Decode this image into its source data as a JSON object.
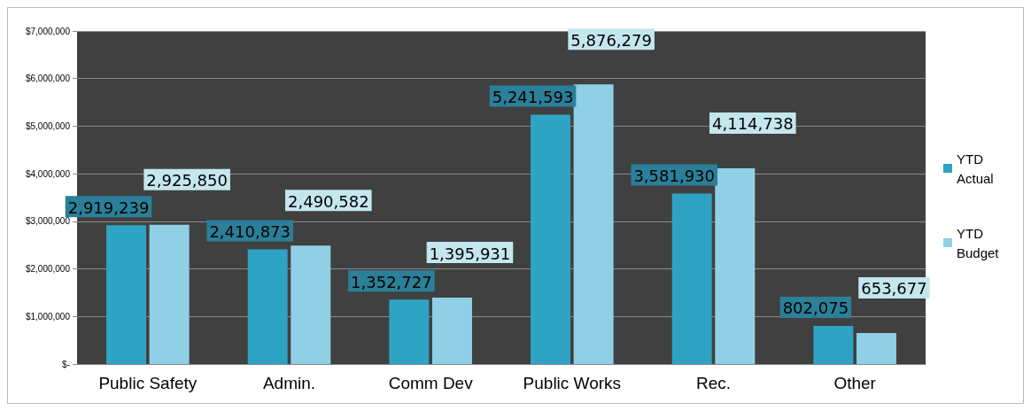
{
  "chart_data": {
    "type": "bar",
    "categories": [
      "Public Safety",
      "Admin.",
      "Comm Dev",
      "Public Works",
      "Rec.",
      "Other"
    ],
    "series": [
      {
        "name": "YTD Actual",
        "color": "#2fa3c3",
        "values": [
          2919239,
          2410873,
          1352727,
          5241593,
          3581930,
          802075
        ],
        "value_labels": [
          "2,919,239",
          "2,410,873",
          "1,352,727",
          "5,241,593",
          "3,581,930",
          "802,075"
        ]
      },
      {
        "name": "YTD Budget",
        "color": "#8fd0e6",
        "values": [
          2925850,
          2490582,
          1395931,
          5876279,
          4114738,
          653677
        ],
        "value_labels": [
          "2,925,850",
          "2,490,582",
          "1,395,931",
          "5,876,279",
          "4,114,738",
          "653,677"
        ]
      }
    ],
    "ylim": [
      0,
      7000000
    ],
    "yticks": [
      {
        "value": 0,
        "label": "$-"
      },
      {
        "value": 1000000,
        "label": "$1,000,000"
      },
      {
        "value": 2000000,
        "label": "$2,000,000"
      },
      {
        "value": 3000000,
        "label": "$3,000,000"
      },
      {
        "value": 4000000,
        "label": "$4,000,000"
      },
      {
        "value": 5000000,
        "label": "$5,000,000"
      },
      {
        "value": 6000000,
        "label": "$6,000,000"
      },
      {
        "value": 7000000,
        "label": "$7,000,000"
      }
    ],
    "grid": "y",
    "legend": "right"
  }
}
